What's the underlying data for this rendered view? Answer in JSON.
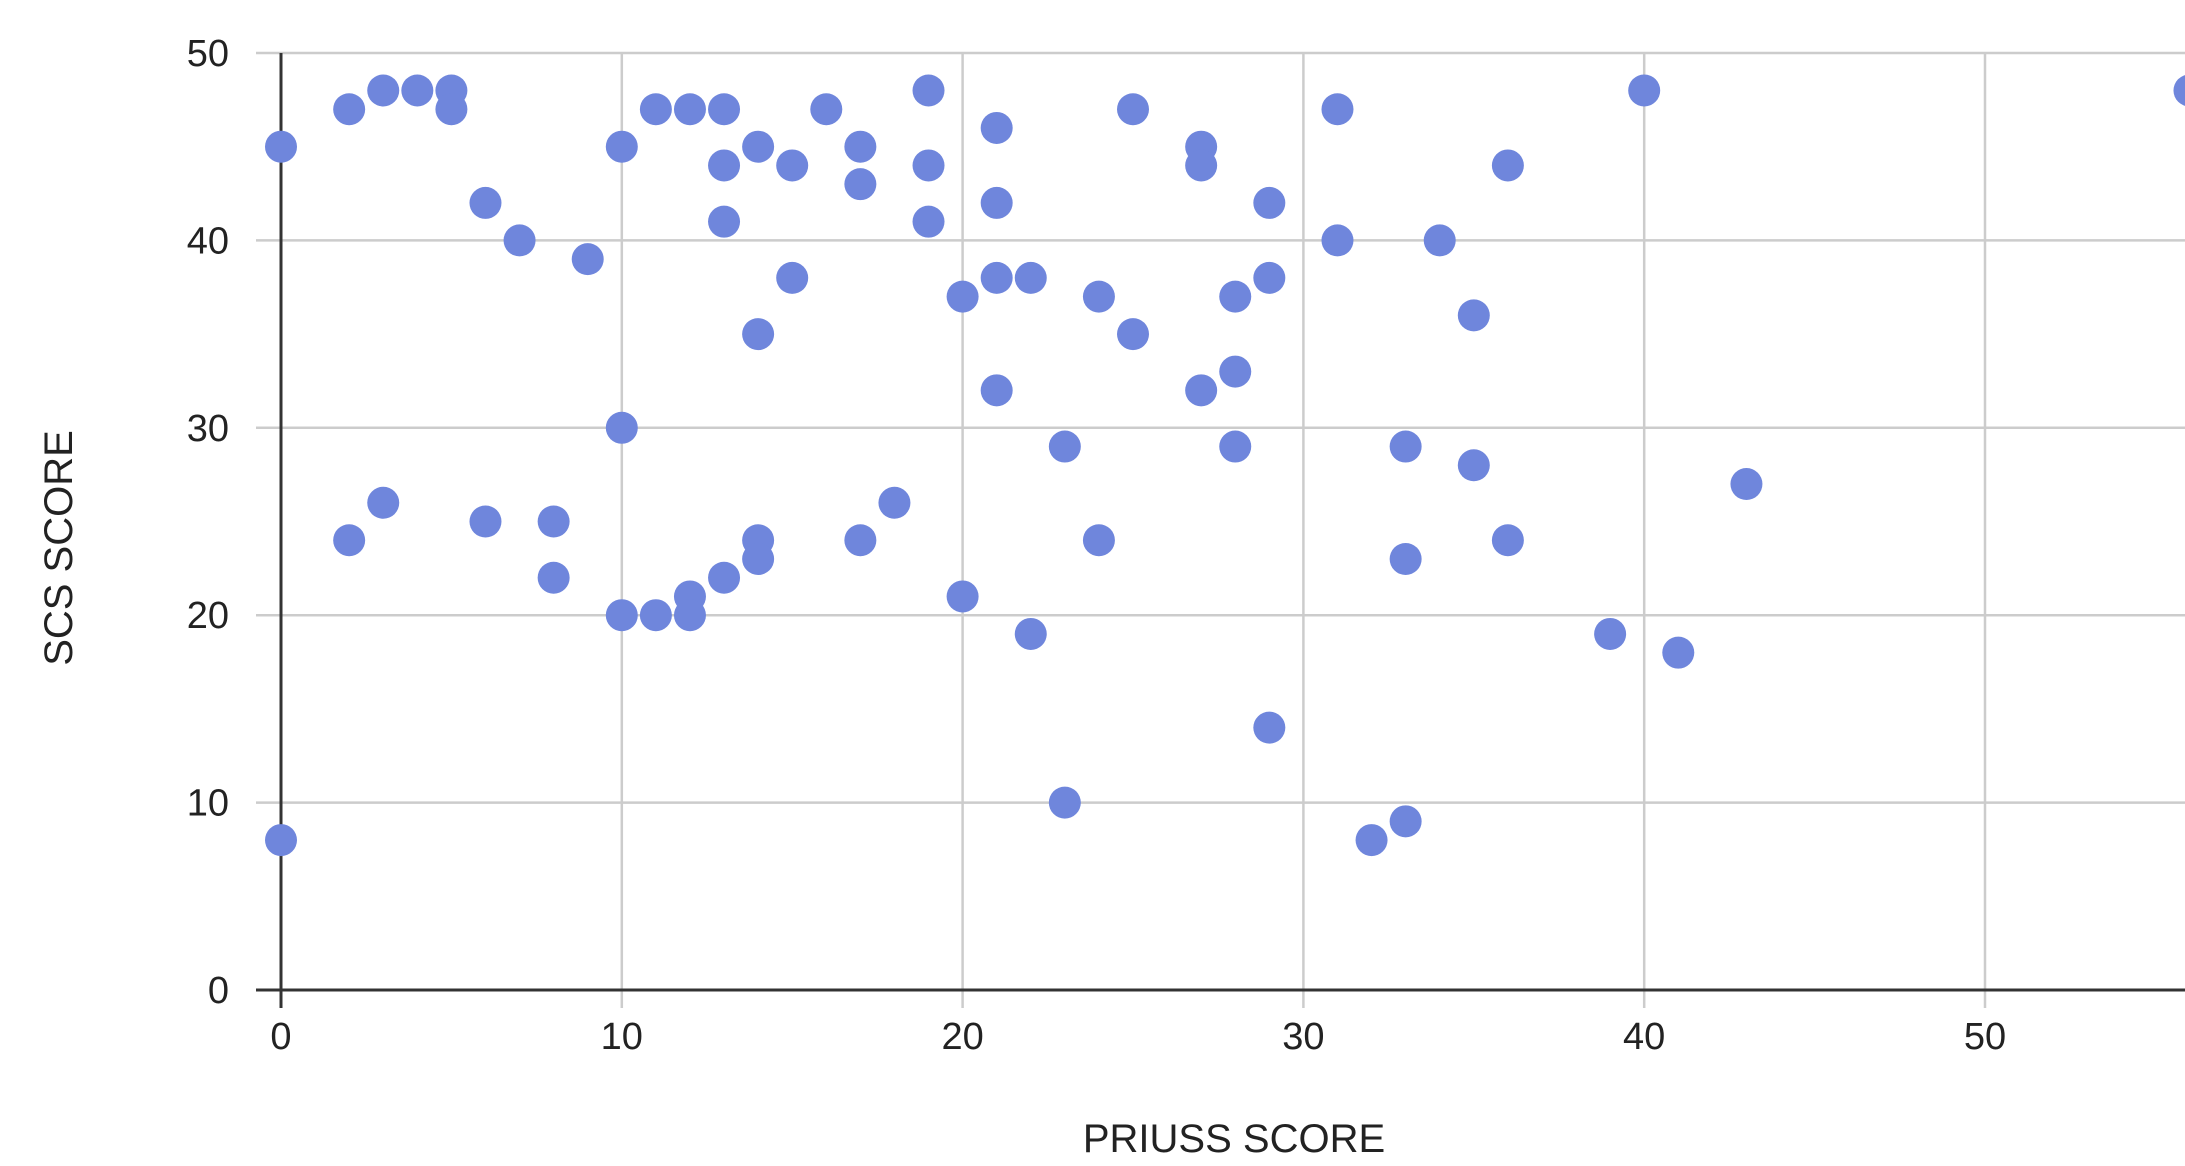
{
  "chart_data": {
    "type": "scatter",
    "title": "",
    "xlabel": "PRIUSS SCORE",
    "ylabel": "SCS SCORE",
    "xlim": [
      0,
      60
    ],
    "ylim": [
      0,
      50
    ],
    "x_ticks": [
      0,
      10,
      20,
      30,
      40,
      50
    ],
    "y_ticks": [
      0,
      10,
      20,
      30,
      40,
      50
    ],
    "grid": true,
    "legend": "none",
    "point_color": "#6f86dc",
    "series": [
      {
        "points": [
          {
            "x": 0,
            "y": 45
          },
          {
            "x": 0,
            "y": 8
          },
          {
            "x": 2,
            "y": 47
          },
          {
            "x": 2,
            "y": 24
          },
          {
            "x": 3,
            "y": 48
          },
          {
            "x": 3,
            "y": 26
          },
          {
            "x": 4,
            "y": 48
          },
          {
            "x": 5,
            "y": 48
          },
          {
            "x": 5,
            "y": 47
          },
          {
            "x": 6,
            "y": 42
          },
          {
            "x": 6,
            "y": 25
          },
          {
            "x": 7,
            "y": 40
          },
          {
            "x": 8,
            "y": 25
          },
          {
            "x": 8,
            "y": 22
          },
          {
            "x": 9,
            "y": 39
          },
          {
            "x": 10,
            "y": 45
          },
          {
            "x": 10,
            "y": 30
          },
          {
            "x": 10,
            "y": 20
          },
          {
            "x": 11,
            "y": 47
          },
          {
            "x": 11,
            "y": 20
          },
          {
            "x": 12,
            "y": 47
          },
          {
            "x": 12,
            "y": 21
          },
          {
            "x": 12,
            "y": 20
          },
          {
            "x": 13,
            "y": 47
          },
          {
            "x": 13,
            "y": 44
          },
          {
            "x": 13,
            "y": 41
          },
          {
            "x": 13,
            "y": 22
          },
          {
            "x": 14,
            "y": 45
          },
          {
            "x": 14,
            "y": 35
          },
          {
            "x": 14,
            "y": 24
          },
          {
            "x": 14,
            "y": 23
          },
          {
            "x": 15,
            "y": 44
          },
          {
            "x": 15,
            "y": 38
          },
          {
            "x": 16,
            "y": 47
          },
          {
            "x": 17,
            "y": 45
          },
          {
            "x": 17,
            "y": 43
          },
          {
            "x": 17,
            "y": 24
          },
          {
            "x": 18,
            "y": 26
          },
          {
            "x": 19,
            "y": 48
          },
          {
            "x": 19,
            "y": 44
          },
          {
            "x": 19,
            "y": 41
          },
          {
            "x": 20,
            "y": 37
          },
          {
            "x": 20,
            "y": 21
          },
          {
            "x": 21,
            "y": 46
          },
          {
            "x": 21,
            "y": 42
          },
          {
            "x": 21,
            "y": 38
          },
          {
            "x": 21,
            "y": 32
          },
          {
            "x": 22,
            "y": 38
          },
          {
            "x": 22,
            "y": 19
          },
          {
            "x": 23,
            "y": 29
          },
          {
            "x": 23,
            "y": 10
          },
          {
            "x": 24,
            "y": 37
          },
          {
            "x": 24,
            "y": 24
          },
          {
            "x": 25,
            "y": 47
          },
          {
            "x": 25,
            "y": 35
          },
          {
            "x": 27,
            "y": 45
          },
          {
            "x": 27,
            "y": 44
          },
          {
            "x": 27,
            "y": 32
          },
          {
            "x": 28,
            "y": 37
          },
          {
            "x": 28,
            "y": 33
          },
          {
            "x": 28,
            "y": 29
          },
          {
            "x": 29,
            "y": 42
          },
          {
            "x": 29,
            "y": 38
          },
          {
            "x": 29,
            "y": 14
          },
          {
            "x": 31,
            "y": 47
          },
          {
            "x": 31,
            "y": 40
          },
          {
            "x": 32,
            "y": 8
          },
          {
            "x": 33,
            "y": 29
          },
          {
            "x": 33,
            "y": 23
          },
          {
            "x": 33,
            "y": 9
          },
          {
            "x": 34,
            "y": 40
          },
          {
            "x": 35,
            "y": 36
          },
          {
            "x": 35,
            "y": 28
          },
          {
            "x": 36,
            "y": 44
          },
          {
            "x": 36,
            "y": 24
          },
          {
            "x": 39,
            "y": 19
          },
          {
            "x": 40,
            "y": 48
          },
          {
            "x": 41,
            "y": 18
          },
          {
            "x": 43,
            "y": 27
          },
          {
            "x": 56,
            "y": 48
          }
        ]
      }
    ]
  }
}
